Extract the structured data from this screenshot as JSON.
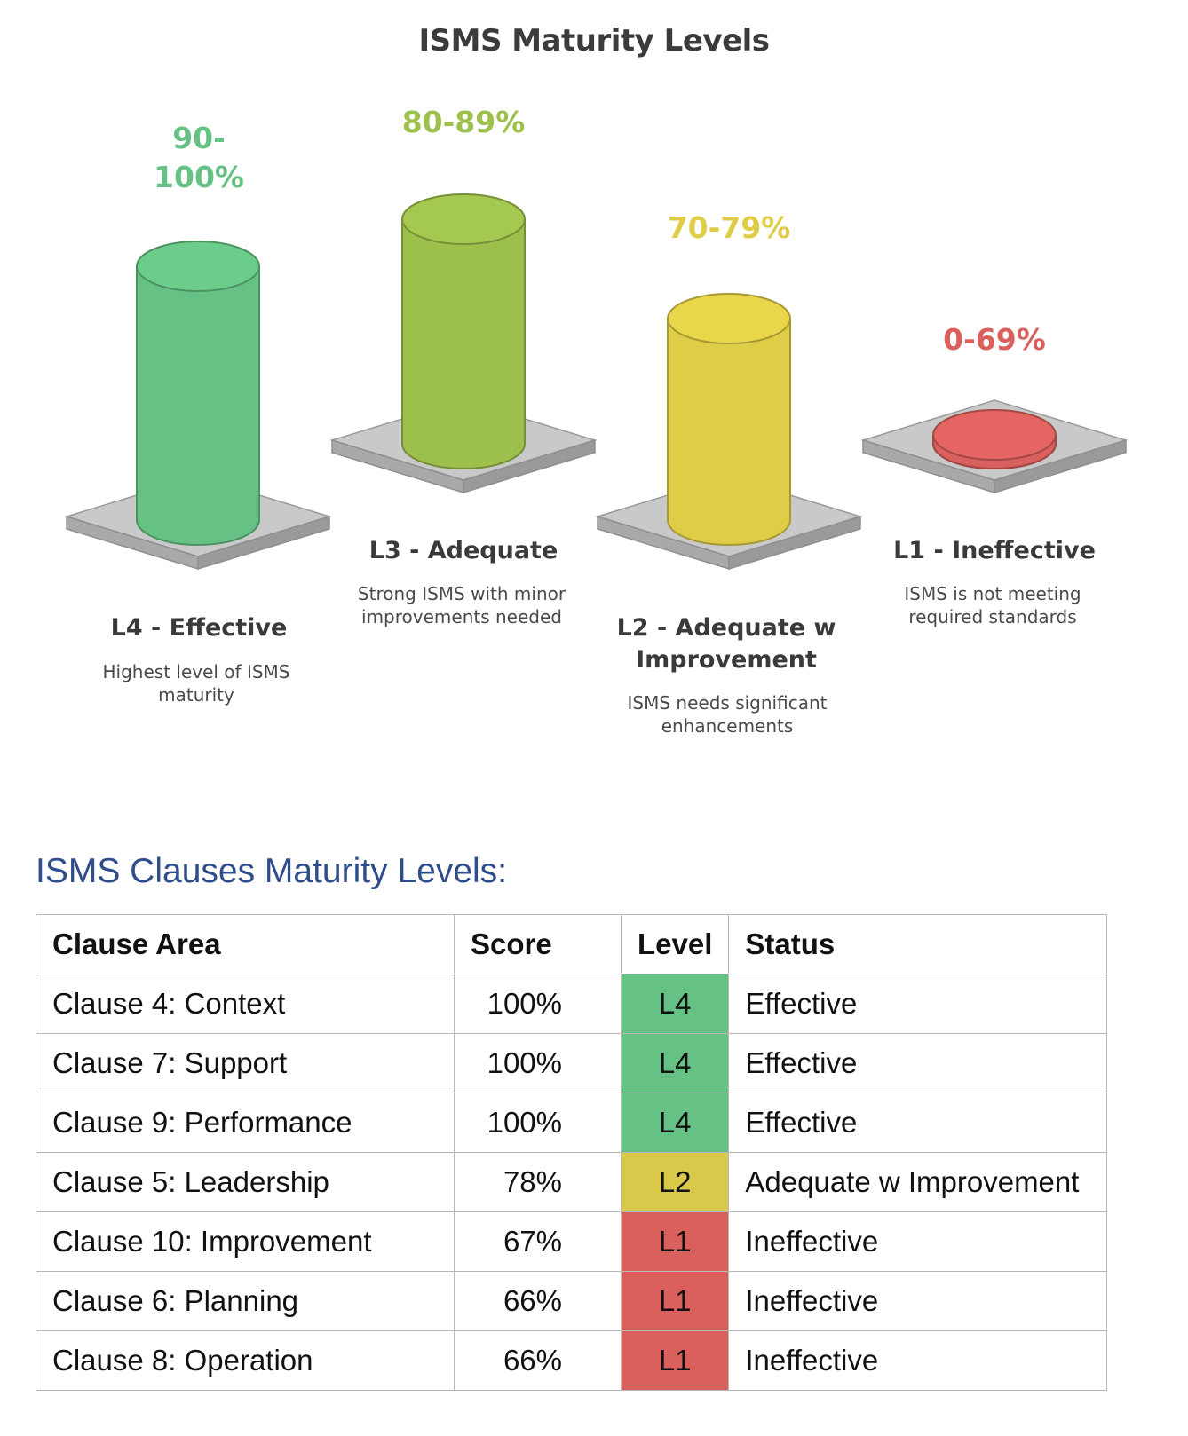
{
  "diagram": {
    "title": "ISMS Maturity Levels",
    "levels": [
      {
        "range": "90-\n100%",
        "name": "L4 - Effective",
        "description": "Highest level of ISMS\nmaturity",
        "color": "#66c284",
        "rank": 4
      },
      {
        "range": "80-89%",
        "name": "L3 - Adequate",
        "description": "Strong ISMS with minor\nimprovements needed",
        "color": "#9dbf4c",
        "rank": 3
      },
      {
        "range": "70-79%",
        "name": "L2 - Adequate w\nImprovement",
        "description": "ISMS needs significant\nenhancements",
        "color": "#dfcc47",
        "rank": 2
      },
      {
        "range": "0-69%",
        "name": "L1 - Ineffective",
        "description": "ISMS is not meeting\nrequired standards",
        "color": "#d9605c",
        "rank": 1
      }
    ]
  },
  "clauses": {
    "heading": "ISMS Clauses Maturity Levels:",
    "columns": [
      "Clause Area",
      "Score",
      "Level",
      "Status"
    ],
    "rows": [
      {
        "area": "Clause 4: Context",
        "score": "100%",
        "level": "L4",
        "status": "Effective"
      },
      {
        "area": "Clause 7: Support",
        "score": "100%",
        "level": "L4",
        "status": "Effective"
      },
      {
        "area": "Clause 9: Performance",
        "score": "100%",
        "level": "L4",
        "status": "Effective"
      },
      {
        "area": "Clause 5: Leadership",
        "score": "78%",
        "level": "L2",
        "status": "Adequate w Improvement"
      },
      {
        "area": "Clause 10: Improvement",
        "score": "67%",
        "level": "L1",
        "status": "Ineffective"
      },
      {
        "area": "Clause 6: Planning",
        "score": "66%",
        "level": "L1",
        "status": "Ineffective"
      },
      {
        "area": "Clause 8: Operation",
        "score": "66%",
        "level": "L1",
        "status": "Ineffective"
      }
    ],
    "level_colors": {
      "L4": "#66c284",
      "L2": "#d8c94a",
      "L1": "#d9605c"
    }
  }
}
